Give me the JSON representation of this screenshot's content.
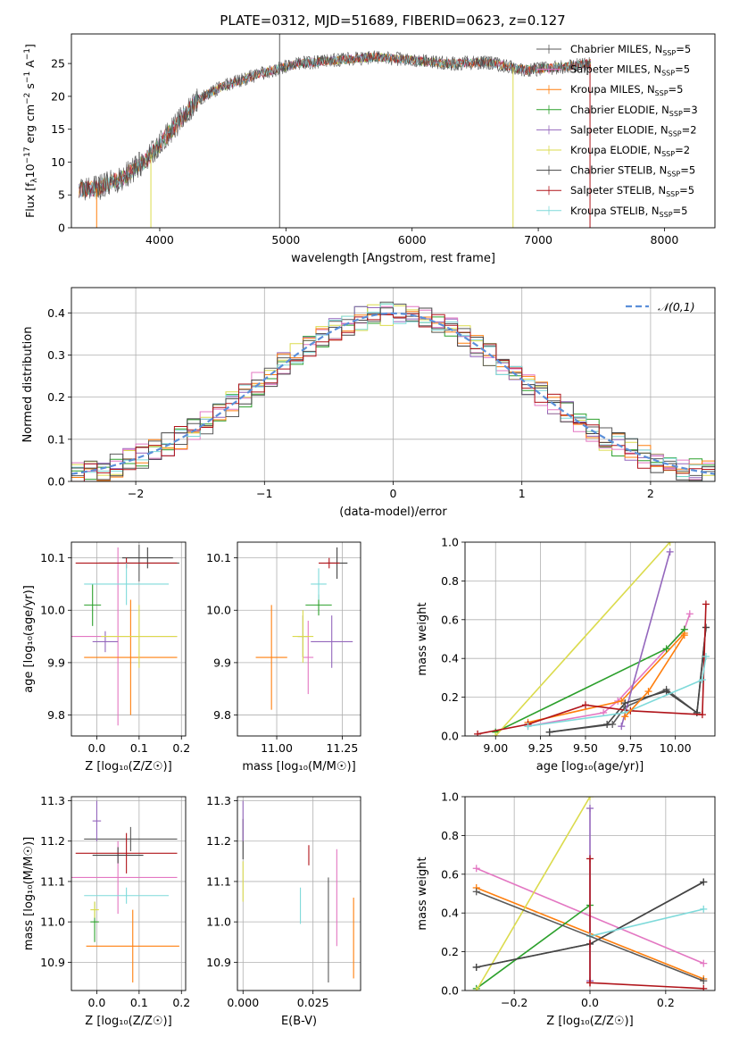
{
  "title": "PLATE=0312, MJD=51689, FIBERID=0623, z=0.127",
  "models": [
    {
      "label": "Chabrier MILES, N",
      "sub": "SSP",
      "suffix": "=5",
      "color": "#5a5a5a"
    },
    {
      "label": "Salpeter MILES, N",
      "sub": "SSP",
      "suffix": "=5",
      "color": "#e377c2"
    },
    {
      "label": "Kroupa MILES, N",
      "sub": "SSP",
      "suffix": "=5",
      "color": "#ff7f0e"
    },
    {
      "label": "Chabrier ELODIE, N",
      "sub": "SSP",
      "suffix": "=3",
      "color": "#2ca02c"
    },
    {
      "label": "Salpeter ELODIE, N",
      "sub": "SSP",
      "suffix": "=2",
      "color": "#9467bd"
    },
    {
      "label": "Kroupa ELODIE, N",
      "sub": "SSP",
      "suffix": "=2",
      "color": "#dbdb4d"
    },
    {
      "label": "Chabrier STELIB, N",
      "sub": "SSP",
      "suffix": "=5",
      "color": "#444444"
    },
    {
      "label": "Salpeter STELIB, N",
      "sub": "SSP",
      "suffix": "=5",
      "color": "#b0141a"
    },
    {
      "label": "Kroupa STELIB, N",
      "sub": "SSP",
      "suffix": "=5",
      "color": "#7fdada"
    }
  ],
  "chart_data": [
    {
      "type": "line",
      "id": "spectrum",
      "xlabel": "wavelength [Angstrom, rest frame]",
      "ylabel_parts": [
        "Flux [f",
        "λ",
        "10",
        "−17",
        " erg cm",
        "−2",
        " s",
        "−1",
        " A",
        "−1",
        "]"
      ],
      "xlim": [
        3300,
        8400
      ],
      "ylim": [
        0,
        29.5
      ],
      "xticks": [
        4000,
        5000,
        6000,
        7000,
        8000
      ],
      "yticks": [
        0,
        5,
        10,
        15,
        20,
        25
      ],
      "grid": false,
      "legend": "top-right",
      "x": [
        3350,
        3500,
        3700,
        3900,
        4100,
        4300,
        4500,
        4800,
        5100,
        5400,
        5700,
        6000,
        6300,
        6600,
        6900,
        7200,
        7400
      ],
      "y": [
        5.8,
        6.0,
        7.5,
        10.5,
        15,
        19.5,
        21.5,
        23.5,
        25,
        25.5,
        26,
        25.5,
        25,
        25.2,
        24,
        24.5,
        25
      ]
    },
    {
      "type": "bar",
      "id": "residuals",
      "xlabel": "(data-model)/error",
      "ylabel": "Normed distribution",
      "xlim": [
        -2.5,
        2.5
      ],
      "ylim": [
        0,
        0.46
      ],
      "xticks": [
        -2,
        -1,
        0,
        1,
        2
      ],
      "yticks": [
        0.0,
        0.1,
        0.2,
        0.3,
        0.4
      ],
      "grid": true,
      "legend_label": "𝒩(0,1)",
      "legend": "top-right",
      "bin_width": 0.1
    },
    {
      "type": "scatter",
      "id": "z-age",
      "xlabel": "Z [log₁₀(Z/Z☉)]",
      "ylabel": "age  [log₁₀(age/yr)]",
      "xlim": [
        -0.06,
        0.21
      ],
      "ylim": [
        9.76,
        10.13
      ],
      "xticks": [
        0.0,
        0.1,
        0.2
      ],
      "yticks": [
        9.8,
        9.9,
        10.0,
        10.1
      ],
      "grid": true,
      "points": [
        {
          "m": 0,
          "x": 0.1,
          "y": 10.09,
          "ex": 0.095,
          "ey": 0.035
        },
        {
          "m": 1,
          "x": 0.05,
          "y": 9.95,
          "ex": 0.14,
          "ey": 0.17
        },
        {
          "m": 2,
          "x": 0.08,
          "y": 9.91,
          "ex": 0.11,
          "ey": 0.11
        },
        {
          "m": 3,
          "x": -0.01,
          "y": 10.01,
          "ex": 0.02,
          "ey": 0.04
        },
        {
          "m": 4,
          "x": 0.02,
          "y": 9.94,
          "ex": 0.03,
          "ey": 0.02
        },
        {
          "m": 5,
          "x": 0.1,
          "y": 9.95,
          "ex": 0.09,
          "ey": 0.06
        },
        {
          "m": 6,
          "x": 0.12,
          "y": 10.1,
          "ex": 0.06,
          "ey": 0.02
        },
        {
          "m": 7,
          "x": 0.07,
          "y": 10.09,
          "ex": 0.12,
          "ey": 0.01
        },
        {
          "m": 8,
          "x": 0.07,
          "y": 10.05,
          "ex": 0.1,
          "ey": 0.04
        }
      ]
    },
    {
      "type": "scatter",
      "id": "mass-age",
      "xlabel": "mass [log₁₀(M/M☉)]",
      "ylabel": "",
      "xlim": [
        10.85,
        11.32
      ],
      "ylim": [
        9.76,
        10.13
      ],
      "xticks": [
        11.0,
        11.25
      ],
      "yticks": [
        9.8,
        9.9,
        10.0,
        10.1
      ],
      "grid": true,
      "points": [
        {
          "m": 0,
          "x": 11.1,
          "y": 9.95,
          "ex": 0.02,
          "ey": 0.04
        },
        {
          "m": 1,
          "x": 11.12,
          "y": 9.91,
          "ex": 0.02,
          "ey": 0.07
        },
        {
          "m": 2,
          "x": 10.98,
          "y": 9.91,
          "ex": 0.06,
          "ey": 0.1
        },
        {
          "m": 3,
          "x": 11.16,
          "y": 10.01,
          "ex": 0.05,
          "ey": 0.02
        },
        {
          "m": 4,
          "x": 11.21,
          "y": 9.94,
          "ex": 0.08,
          "ey": 0.05
        },
        {
          "m": 5,
          "x": 11.1,
          "y": 9.95,
          "ex": 0.04,
          "ey": 0.05
        },
        {
          "m": 6,
          "x": 11.23,
          "y": 10.09,
          "ex": 0.04,
          "ey": 0.03
        },
        {
          "m": 7,
          "x": 11.2,
          "y": 10.09,
          "ex": 0.04,
          "ey": 0.01
        },
        {
          "m": 8,
          "x": 11.16,
          "y": 10.05,
          "ex": 0.03,
          "ey": 0.03
        }
      ]
    },
    {
      "type": "line",
      "id": "age-weight",
      "xlabel": "age  [log₁₀(age/yr)]",
      "ylabel": "mass weight",
      "xlim": [
        8.83,
        10.22
      ],
      "ylim": [
        0,
        1.0
      ],
      "xticks": [
        9.0,
        9.25,
        9.5,
        9.75,
        10.0
      ],
      "yticks": [
        0.0,
        0.2,
        0.4,
        0.6,
        0.8,
        1.0
      ],
      "grid": true,
      "series": [
        {
          "m": 0,
          "x": [
            9.3,
            9.65,
            9.72,
            9.95,
            10.12,
            10.17
          ],
          "y": [
            0.02,
            0.06,
            0.15,
            0.24,
            0.12,
            0.56
          ]
        },
        {
          "m": 1,
          "x": [
            9.18,
            9.6,
            9.68,
            10.05,
            10.08
          ],
          "y": [
            0.05,
            0.12,
            0.18,
            0.55,
            0.63
          ]
        },
        {
          "m": 2,
          "x": [
            9.18,
            9.7,
            10.05
          ],
          "y": [
            0.07,
            0.18,
            0.53
          ]
        },
        {
          "m": 3,
          "x": [
            9.0,
            9.95,
            10.05
          ],
          "y": [
            0.02,
            0.45,
            0.55
          ]
        },
        {
          "m": 4,
          "x": [
            9.7,
            9.97
          ],
          "y": [
            0.05,
            0.95
          ]
        },
        {
          "m": 5,
          "x": [
            9.0,
            9.97
          ],
          "y": [
            0.0,
            1.0
          ]
        },
        {
          "m": 6,
          "x": [
            9.3,
            9.62,
            9.72,
            9.95,
            10.12,
            10.17
          ],
          "y": [
            0.02,
            0.06,
            0.17,
            0.23,
            0.12,
            0.56
          ]
        },
        {
          "m": 7,
          "x": [
            8.9,
            9.18,
            9.5,
            9.75,
            10.15,
            10.17
          ],
          "y": [
            0.01,
            0.06,
            0.16,
            0.13,
            0.11,
            0.68
          ]
        },
        {
          "m": 8,
          "x": [
            9.18,
            9.72,
            10.15,
            10.17
          ],
          "y": [
            0.05,
            0.12,
            0.29,
            0.41
          ]
        },
        {
          "m": 2,
          "x": [
            9.72,
            9.85,
            10.05
          ],
          "y": [
            0.1,
            0.23,
            0.52
          ]
        }
      ]
    },
    {
      "type": "scatter",
      "id": "z-mass",
      "xlabel": "Z [log₁₀(Z/Z☉)]",
      "ylabel": "mass [log₁₀(M/M☉)]",
      "xlim": [
        -0.06,
        0.21
      ],
      "ylim": [
        10.83,
        11.31
      ],
      "xticks": [
        0.0,
        0.1,
        0.2
      ],
      "yticks": [
        10.9,
        11.0,
        11.1,
        11.2,
        11.3
      ],
      "grid": true,
      "points": [
        {
          "m": 0,
          "x": 0.08,
          "y": 11.205,
          "ex": 0.11,
          "ey": 0.03
        },
        {
          "m": 1,
          "x": 0.05,
          "y": 11.11,
          "ex": 0.14,
          "ey": 0.09
        },
        {
          "m": 2,
          "x": 0.085,
          "y": 10.94,
          "ex": 0.11,
          "ey": 0.09
        },
        {
          "m": 3,
          "x": -0.005,
          "y": 11.0,
          "ex": 0.01,
          "ey": 0.05
        },
        {
          "m": 4,
          "x": 0.0,
          "y": 11.25,
          "ex": 0.01,
          "ey": 0.05
        },
        {
          "m": 5,
          "x": -0.005,
          "y": 11.03,
          "ex": 0.01,
          "ey": 0.02
        },
        {
          "m": 6,
          "x": 0.05,
          "y": 11.165,
          "ex": 0.06,
          "ey": 0.02
        },
        {
          "m": 7,
          "x": 0.07,
          "y": 11.17,
          "ex": 0.12,
          "ey": 0.05
        },
        {
          "m": 8,
          "x": 0.07,
          "y": 11.065,
          "ex": 0.1,
          "ey": 0.02
        }
      ]
    },
    {
      "type": "scatter",
      "id": "ebv-mass",
      "xlabel": "E(B-V)",
      "ylabel": "",
      "xlim": [
        -0.002,
        0.042
      ],
      "ylim": [
        10.83,
        11.31
      ],
      "xticks": [
        0.0,
        0.025
      ],
      "yticks": [
        10.9,
        11.0,
        11.1,
        11.2,
        11.3
      ],
      "grid": true,
      "points": [
        {
          "m": 6,
          "x": 0.0,
          "y": 11.205,
          "ex": 0,
          "ey": 0.05
        },
        {
          "m": 4,
          "x": 0.0,
          "y": 11.25,
          "ex": 0,
          "ey": 0.05
        },
        {
          "m": 5,
          "x": 0.0,
          "y": 11.1,
          "ex": 0,
          "ey": 0.05
        },
        {
          "m": 8,
          "x": 0.0205,
          "y": 11.04,
          "ex": 0,
          "ey": 0.045
        },
        {
          "m": 7,
          "x": 0.0235,
          "y": 11.165,
          "ex": 0,
          "ey": 0.025
        },
        {
          "m": 0,
          "x": 0.0305,
          "y": 10.98,
          "ex": 0,
          "ey": 0.13
        },
        {
          "m": 1,
          "x": 0.0335,
          "y": 11.06,
          "ex": 0,
          "ey": 0.12
        },
        {
          "m": 2,
          "x": 0.0395,
          "y": 10.96,
          "ex": 0,
          "ey": 0.1
        }
      ]
    },
    {
      "type": "line",
      "id": "z-weight",
      "xlabel": "Z [log₁₀(Z/Z☉)]",
      "ylabel": "mass weight",
      "xlim": [
        -0.33,
        0.33
      ],
      "ylim": [
        0,
        1.0
      ],
      "xticks": [
        -0.2,
        0.0,
        0.2
      ],
      "yticks": [
        0.0,
        0.2,
        0.4,
        0.6,
        0.8,
        1.0
      ],
      "grid": true,
      "series": [
        {
          "m": 0,
          "x": [
            -0.3,
            0.0,
            0.3
          ],
          "y": [
            0.12,
            0.24,
            0.56
          ]
        },
        {
          "m": 1,
          "x": [
            -0.3,
            0.3
          ],
          "y": [
            0.63,
            0.14
          ]
        },
        {
          "m": 2,
          "x": [
            -0.3,
            0.3
          ],
          "y": [
            0.53,
            0.06
          ]
        },
        {
          "m": 3,
          "x": [
            -0.3,
            0.0
          ],
          "y": [
            0.01,
            0.44
          ]
        },
        {
          "m": 4,
          "x": [
            0.0,
            0.0
          ],
          "y": [
            0.05,
            0.94
          ]
        },
        {
          "m": 5,
          "x": [
            -0.3,
            0.0
          ],
          "y": [
            0.0,
            1.0
          ]
        },
        {
          "m": 6,
          "x": [
            -0.3,
            0.0,
            0.3
          ],
          "y": [
            0.12,
            0.24,
            0.56
          ]
        },
        {
          "m": 7,
          "x": [
            0.0,
            0.3
          ],
          "y": [
            0.04,
            0.01
          ]
        },
        {
          "m": 7,
          "x": [
            0.0,
            0.0
          ],
          "y": [
            0.04,
            0.68
          ]
        },
        {
          "m": 8,
          "x": [
            0.0,
            0.3
          ],
          "y": [
            0.28,
            0.42
          ]
        },
        {
          "m": 0,
          "x": [
            -0.3,
            0.3
          ],
          "y": [
            0.51,
            0.05
          ]
        }
      ]
    }
  ]
}
